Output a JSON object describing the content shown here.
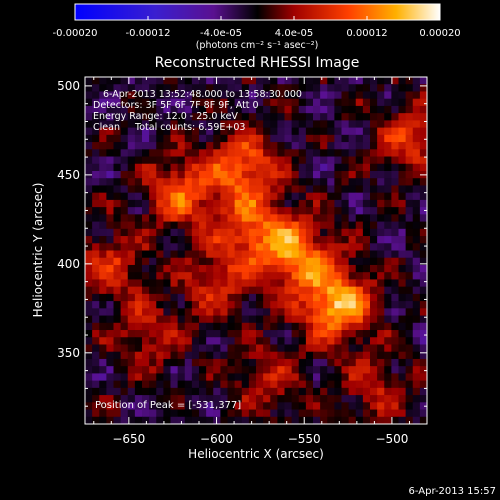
{
  "colorbar": {
    "ticks": [
      "-0.00020",
      "-0.00012",
      "-4.0e-05",
      "4.0e-05",
      "0.00012",
      "0.00020"
    ],
    "tick_values": [
      -0.0002,
      -0.00012,
      -4e-05,
      4e-05,
      0.00012,
      0.0002
    ],
    "range": [
      -0.0002,
      0.0002
    ],
    "unit_label": "(photons cm⁻² s⁻¹ asec⁻²)"
  },
  "chart_data": {
    "type": "heatmap",
    "title": "Reconstructed RHESSI Image",
    "xlabel": "Heliocentric X (arcsec)",
    "ylabel": "Heliocentric Y (arcsec)",
    "xlim": [
      -675,
      -480
    ],
    "ylim": [
      310,
      505
    ],
    "x_ticks": [
      -650,
      -600,
      -550,
      -500
    ],
    "y_ticks": [
      350,
      400,
      450,
      500
    ],
    "annotations": [
      "6-Apr-2013 13:52:48.000 to 13:58:30.000",
      "Detectors: 3F 5F 6F 7F 8F 9F, Att 0",
      "Energy Range: 12.0 - 25.0 keV",
      "Clean     Total counts: 6.59E+03"
    ],
    "peak_label": "Position of Peak = [-531,377]",
    "peak": [
      -531,
      377
    ],
    "sources": [
      {
        "x": -531,
        "y": 377,
        "peak": 1.0
      },
      {
        "x": -555,
        "y": 405,
        "peak": 0.85
      },
      {
        "x": -585,
        "y": 455,
        "peak": 0.7
      },
      {
        "x": -620,
        "y": 440,
        "peak": 0.65
      },
      {
        "x": -580,
        "y": 420,
        "peak": 0.6
      },
      {
        "x": -600,
        "y": 390,
        "peak": 0.45
      },
      {
        "x": -490,
        "y": 470,
        "peak": 0.5
      },
      {
        "x": -660,
        "y": 400,
        "peak": 0.45
      },
      {
        "x": -640,
        "y": 360,
        "peak": 0.4
      },
      {
        "x": -510,
        "y": 330,
        "peak": 0.35
      },
      {
        "x": -570,
        "y": 335,
        "peak": 0.35
      }
    ]
  },
  "footer": {
    "timestamp": "6-Apr-2013 15:57"
  }
}
